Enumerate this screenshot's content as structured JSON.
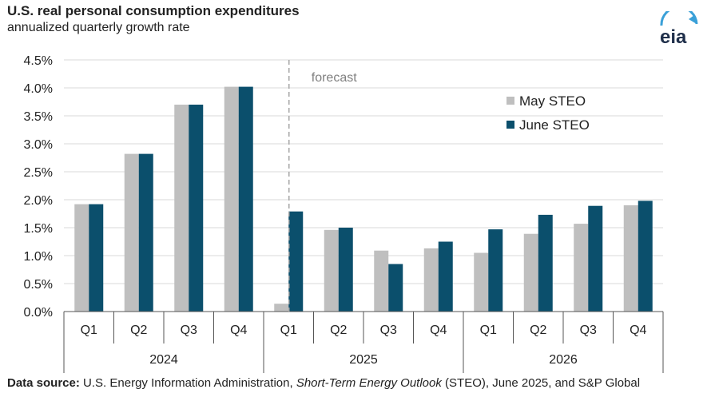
{
  "header": {
    "title": "U.S. real personal consumption expenditures",
    "subtitle": "annualized quarterly growth rate",
    "logo_text": "eia"
  },
  "footer": {
    "label": "Data source:",
    "text1": " U.S. Energy Information Administration, ",
    "text2_italic": "Short-Term Energy Outlook",
    "text3": " (STEO), June 2025, and S&P Global"
  },
  "chart_data": {
    "type": "bar",
    "categories": [
      "Q1",
      "Q2",
      "Q3",
      "Q4",
      "Q1",
      "Q2",
      "Q3",
      "Q4",
      "Q1",
      "Q2",
      "Q3",
      "Q4"
    ],
    "groups": [
      {
        "label": "2024",
        "start": 0,
        "end": 3
      },
      {
        "label": "2025",
        "start": 4,
        "end": 7
      },
      {
        "label": "2026",
        "start": 8,
        "end": 11
      }
    ],
    "series": [
      {
        "name": "May STEO",
        "color": "#bfbfbf",
        "values": [
          1.92,
          2.82,
          3.7,
          4.02,
          0.14,
          1.46,
          1.09,
          1.13,
          1.05,
          1.39,
          1.57,
          1.9
        ]
      },
      {
        "name": "June STEO",
        "color": "#0b4f6c",
        "values": [
          1.92,
          2.82,
          3.7,
          4.02,
          1.79,
          1.5,
          0.85,
          1.25,
          1.47,
          1.73,
          1.89,
          1.98
        ]
      }
    ],
    "ylim": [
      0,
      4.5
    ],
    "yticks": [
      "0.0%",
      "0.5%",
      "1.0%",
      "1.5%",
      "2.0%",
      "2.5%",
      "3.0%",
      "3.5%",
      "4.0%",
      "4.5%"
    ],
    "forecast_label": "forecast",
    "forecast_after_index": 4,
    "grid": true,
    "legend_position": "top-right"
  }
}
